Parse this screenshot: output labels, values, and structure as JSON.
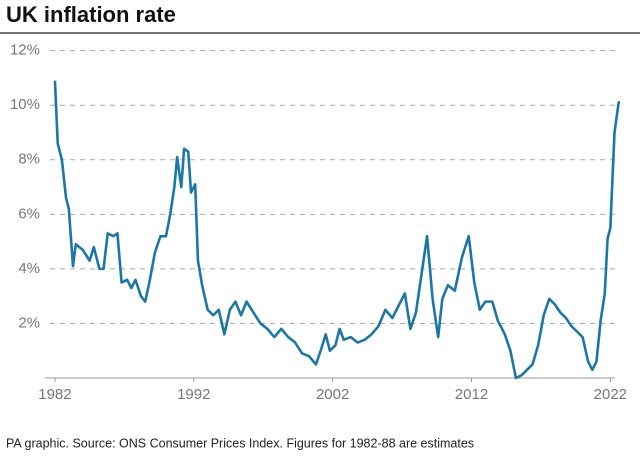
{
  "chart_data": {
    "type": "line",
    "title": "UK inflation rate",
    "source": "PA graphic. Source: ONS Consumer Prices Index. Figures for 1982-88 are estimates",
    "x": [
      1982.0,
      1982.2,
      1982.5,
      1982.8,
      1983.0,
      1983.3,
      1983.5,
      1984.0,
      1984.5,
      1984.8,
      1985.2,
      1985.5,
      1985.8,
      1986.2,
      1986.5,
      1986.8,
      1987.2,
      1987.5,
      1987.8,
      1988.2,
      1988.5,
      1988.8,
      1989.2,
      1989.6,
      1990.0,
      1990.3,
      1990.6,
      1990.8,
      1991.1,
      1991.3,
      1991.6,
      1991.8,
      1992.1,
      1992.3,
      1992.6,
      1993.0,
      1993.4,
      1993.8,
      1994.2,
      1994.6,
      1995.0,
      1995.4,
      1995.8,
      1996.3,
      1996.8,
      1997.3,
      1997.8,
      1998.3,
      1998.8,
      1999.3,
      1999.8,
      2000.3,
      2000.8,
      2001.2,
      2001.5,
      2001.8,
      2002.2,
      2002.5,
      2002.8,
      2003.3,
      2003.8,
      2004.3,
      2004.8,
      2005.3,
      2005.8,
      2006.3,
      2006.8,
      2007.2,
      2007.6,
      2008.0,
      2008.4,
      2008.8,
      2009.2,
      2009.6,
      2009.9,
      2010.3,
      2010.8,
      2011.3,
      2011.8,
      2012.2,
      2012.6,
      2013.0,
      2013.5,
      2013.9,
      2014.4,
      2014.8,
      2015.2,
      2015.6,
      2016.0,
      2016.4,
      2016.8,
      2017.2,
      2017.6,
      2018.0,
      2018.4,
      2018.8,
      2019.2,
      2019.6,
      2020.0,
      2020.4,
      2020.7,
      2021.0,
      2021.3,
      2021.6,
      2021.8,
      2022.0,
      2022.3,
      2022.6,
      2022.7
    ],
    "series": [
      {
        "name": "CPI",
        "color": "#1b77a6",
        "values": [
          10.9,
          8.6,
          8.0,
          6.6,
          6.2,
          4.1,
          4.9,
          4.7,
          4.3,
          4.8,
          4.0,
          4.0,
          5.3,
          5.2,
          5.3,
          3.5,
          3.6,
          3.3,
          3.6,
          3.0,
          2.8,
          3.5,
          4.6,
          5.2,
          5.2,
          6.0,
          7.0,
          8.1,
          7.0,
          8.4,
          8.3,
          6.8,
          7.1,
          4.3,
          3.4,
          2.5,
          2.3,
          2.5,
          1.6,
          2.5,
          2.8,
          2.3,
          2.8,
          2.4,
          2.0,
          1.8,
          1.5,
          1.8,
          1.5,
          1.3,
          0.9,
          0.8,
          0.5,
          1.1,
          1.6,
          1.0,
          1.2,
          1.8,
          1.4,
          1.5,
          1.3,
          1.4,
          1.6,
          1.9,
          2.5,
          2.2,
          2.7,
          3.1,
          1.8,
          2.4,
          3.8,
          5.2,
          2.9,
          1.5,
          2.9,
          3.4,
          3.2,
          4.4,
          5.2,
          3.5,
          2.5,
          2.8,
          2.8,
          2.1,
          1.6,
          1.0,
          0.0,
          0.1,
          0.3,
          0.5,
          1.2,
          2.3,
          2.9,
          2.7,
          2.4,
          2.2,
          1.9,
          1.7,
          1.5,
          0.6,
          0.3,
          0.6,
          2.1,
          3.1,
          5.1,
          5.5,
          9.0,
          10.1,
          10.1
        ]
      }
    ],
    "xlim": [
      1981.5,
      2023.2
    ],
    "xticks": [
      1982,
      1992,
      2002,
      2012,
      2022
    ],
    "ylim": [
      0,
      12.5
    ],
    "yticks": [
      {
        "value": 2,
        "label": "2%"
      },
      {
        "value": 4,
        "label": "4%"
      },
      {
        "value": 6,
        "label": "6%"
      },
      {
        "value": 8,
        "label": "8%"
      },
      {
        "value": 10,
        "label": "10%"
      },
      {
        "value": 12,
        "label": "12%"
      }
    ],
    "grid": true
  }
}
